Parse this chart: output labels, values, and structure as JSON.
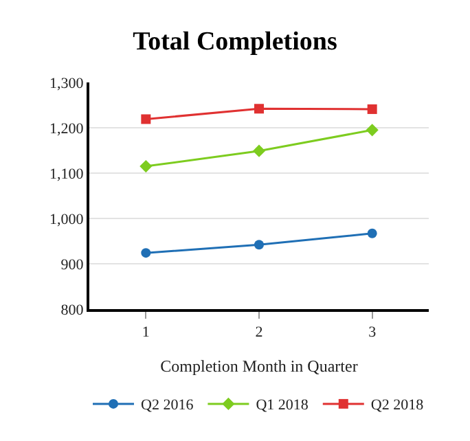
{
  "chart_data": {
    "type": "line",
    "title": "Total Completions",
    "xlabel": "Completion Month in Quarter",
    "categories": [
      "1",
      "2",
      "3"
    ],
    "series": [
      {
        "name": "Q2 2016",
        "color": "#1f6fb5",
        "values": [
          924,
          942,
          967
        ],
        "marker": "circle"
      },
      {
        "name": "Q1 2018",
        "color": "#7dcc1f",
        "values": [
          1115,
          1149,
          1195
        ],
        "marker": "diamond"
      },
      {
        "name": "Q2 2018",
        "color": "#e03131",
        "values": [
          1219,
          1242,
          1241
        ],
        "marker": "square"
      }
    ],
    "ylim": [
      800,
      1300
    ],
    "yticks": [
      {
        "value": 800,
        "label": "800"
      },
      {
        "value": 900,
        "label": "900"
      },
      {
        "value": 1000,
        "label": "1,000"
      },
      {
        "value": 1100,
        "label": "1,100"
      },
      {
        "value": 1200,
        "label": "1,200"
      },
      {
        "value": 1300,
        "label": "1,300"
      }
    ],
    "grid": "y",
    "legend": "bottom",
    "line_style": "solid"
  }
}
